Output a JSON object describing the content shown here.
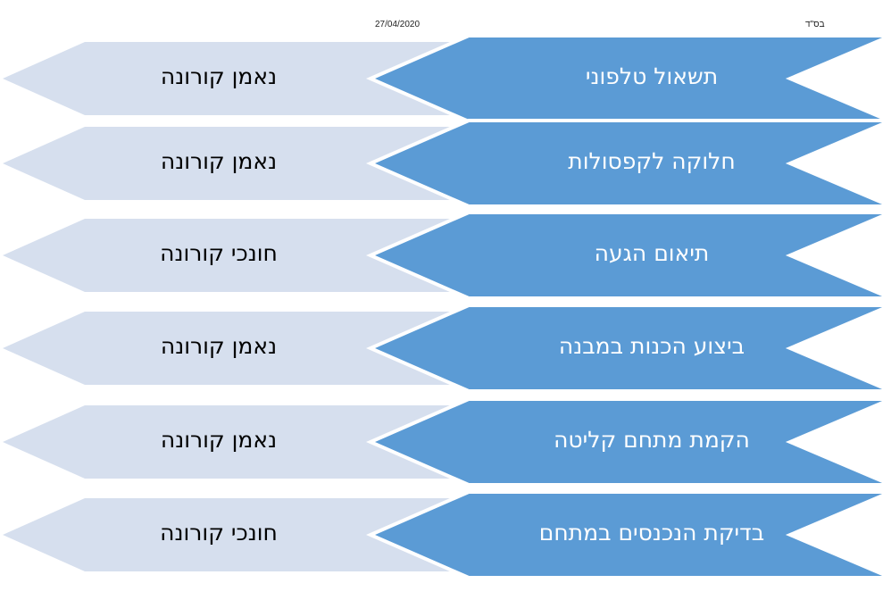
{
  "header": {
    "date": "27/04/2020",
    "bsd": "בס\"ד"
  },
  "colors": {
    "task_fill": "#5b9bd5",
    "owner_fill": "#d6dfee",
    "outline": "#ffffff"
  },
  "rows": [
    {
      "task": "תשאול טלפוני",
      "owner": "נאמן קורונה"
    },
    {
      "task": "חלוקה לקפסולות",
      "owner": "נאמן קורונה"
    },
    {
      "task": "תיאום הגעה",
      "owner": "חונכי קורונה"
    },
    {
      "task": "ביצוע הכנות במבנה",
      "owner": "נאמן קורונה"
    },
    {
      "task": "הקמת מתחם קליטה",
      "owner": "נאמן קורונה"
    },
    {
      "task": "בדיקת הנכנסים במתחם",
      "owner": "חונכי קורונה"
    }
  ]
}
